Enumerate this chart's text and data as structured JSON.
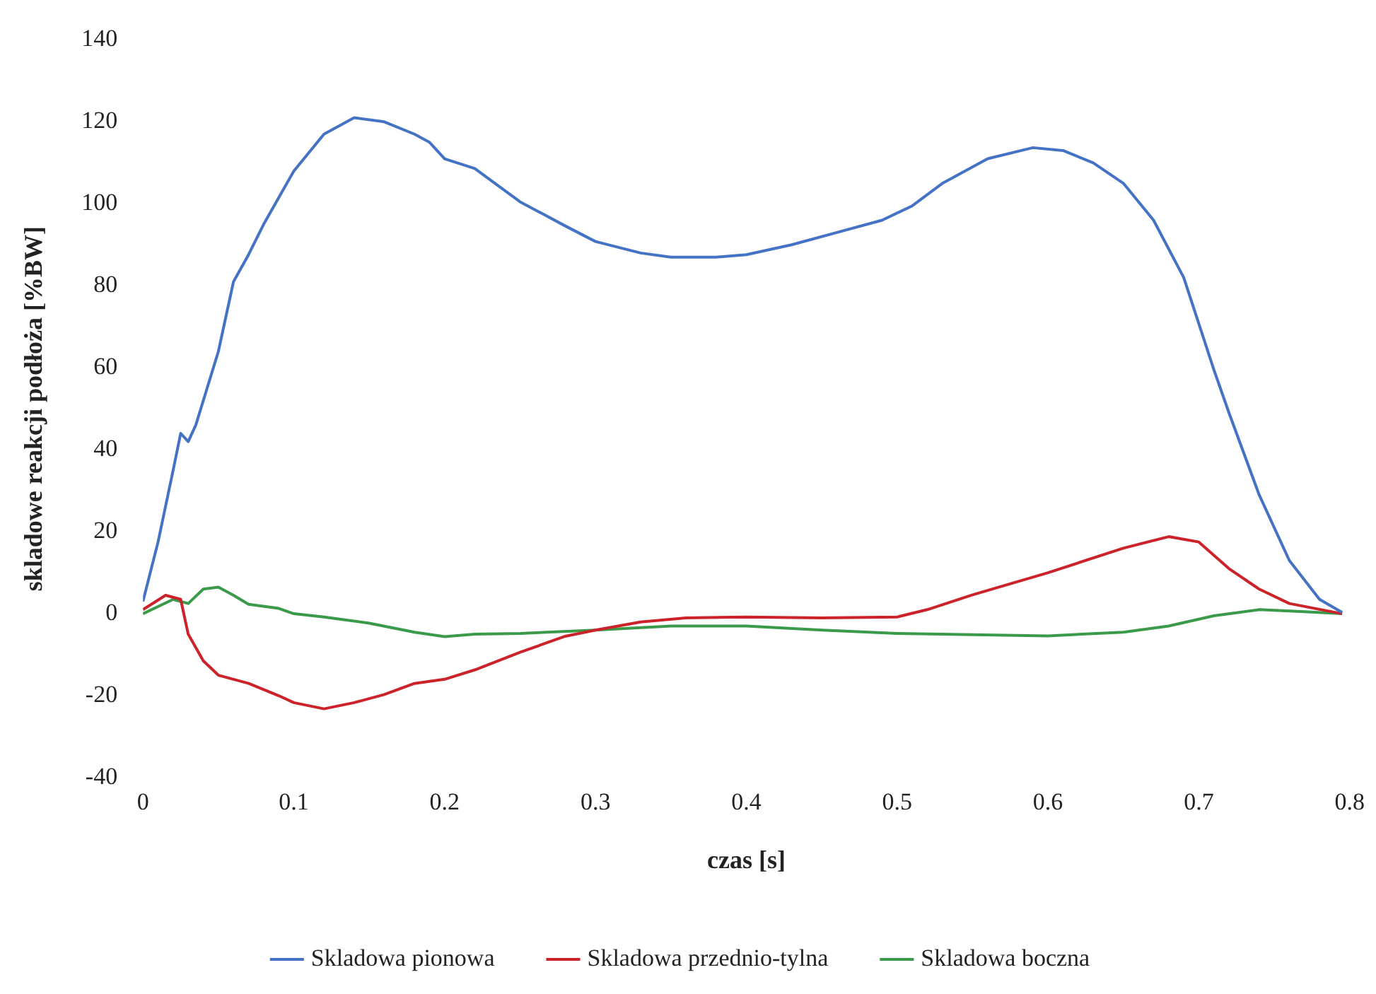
{
  "chart_data": {
    "type": "line",
    "xlabel": "czas [s]",
    "ylabel": "skladowe reakcji podłoża [%BW]",
    "xlim": [
      0,
      0.8
    ],
    "xticks": [
      0,
      0.1,
      0.2,
      0.3,
      0.4,
      0.5,
      0.6,
      0.7,
      0.8
    ],
    "ylim": [
      -40,
      140
    ],
    "yticks": [
      -40,
      -20,
      0,
      20,
      40,
      60,
      80,
      100,
      120,
      140
    ],
    "grid": false,
    "legend": "bottom",
    "marker": "none",
    "line_style": "solid",
    "series": [
      {
        "name": "Skladowa pionowa",
        "color": "#4472c4",
        "x": [
          0,
          0.01,
          0.02,
          0.025,
          0.03,
          0.035,
          0.05,
          0.06,
          0.07,
          0.08,
          0.1,
          0.12,
          0.14,
          0.16,
          0.18,
          0.19,
          0.2,
          0.22,
          0.25,
          0.28,
          0.3,
          0.33,
          0.35,
          0.38,
          0.4,
          0.43,
          0.46,
          0.49,
          0.51,
          0.53,
          0.56,
          0.59,
          0.61,
          0.63,
          0.65,
          0.67,
          0.69,
          0.71,
          0.72,
          0.74,
          0.76,
          0.78,
          0.795
        ],
        "values": [
          3,
          17.5,
          35,
          44,
          42,
          46,
          64,
          81,
          87.6,
          95,
          108,
          117,
          121,
          120,
          117,
          115,
          111,
          108.6,
          100.5,
          94.6,
          90.8,
          88,
          87,
          87,
          87.6,
          90,
          93,
          96,
          99.5,
          105,
          111,
          113.7,
          113,
          110,
          105,
          96,
          82,
          59.5,
          49,
          29,
          13,
          3.5,
          0.3
        ]
      },
      {
        "name": "Skladowa przednio-tylna",
        "color": "#cc2229",
        "x": [
          0,
          0.015,
          0.025,
          0.03,
          0.04,
          0.05,
          0.07,
          0.09,
          0.1,
          0.12,
          0.14,
          0.16,
          0.18,
          0.2,
          0.22,
          0.25,
          0.28,
          0.3,
          0.33,
          0.36,
          0.4,
          0.45,
          0.5,
          0.52,
          0.55,
          0.6,
          0.65,
          0.68,
          0.7,
          0.72,
          0.74,
          0.76,
          0.795
        ],
        "values": [
          1,
          4.5,
          3.5,
          -5,
          -11.5,
          -15,
          -17,
          -20,
          -21.7,
          -23.2,
          -21.7,
          -19.7,
          -17,
          -16,
          -13.7,
          -9.4,
          -5.5,
          -4,
          -2,
          -1,
          -0.8,
          -1,
          -0.8,
          1,
          4.6,
          10,
          16,
          18.8,
          17.5,
          11,
          6,
          2.5,
          0
        ]
      },
      {
        "name": "Skladowa boczna",
        "color": "#3a9a4a",
        "x": [
          0,
          0.02,
          0.03,
          0.04,
          0.05,
          0.06,
          0.07,
          0.09,
          0.1,
          0.12,
          0.15,
          0.18,
          0.2,
          0.22,
          0.25,
          0.3,
          0.35,
          0.4,
          0.45,
          0.5,
          0.6,
          0.65,
          0.68,
          0.71,
          0.74,
          0.77,
          0.795
        ],
        "values": [
          0,
          3.5,
          2.5,
          6,
          6.5,
          4.5,
          2.3,
          1.3,
          0,
          -0.8,
          -2.3,
          -4.5,
          -5.6,
          -5,
          -4.8,
          -4,
          -3,
          -3,
          -4,
          -4.8,
          -5.4,
          -4.5,
          -3,
          -0.5,
          1,
          0.5,
          0
        ]
      }
    ]
  }
}
